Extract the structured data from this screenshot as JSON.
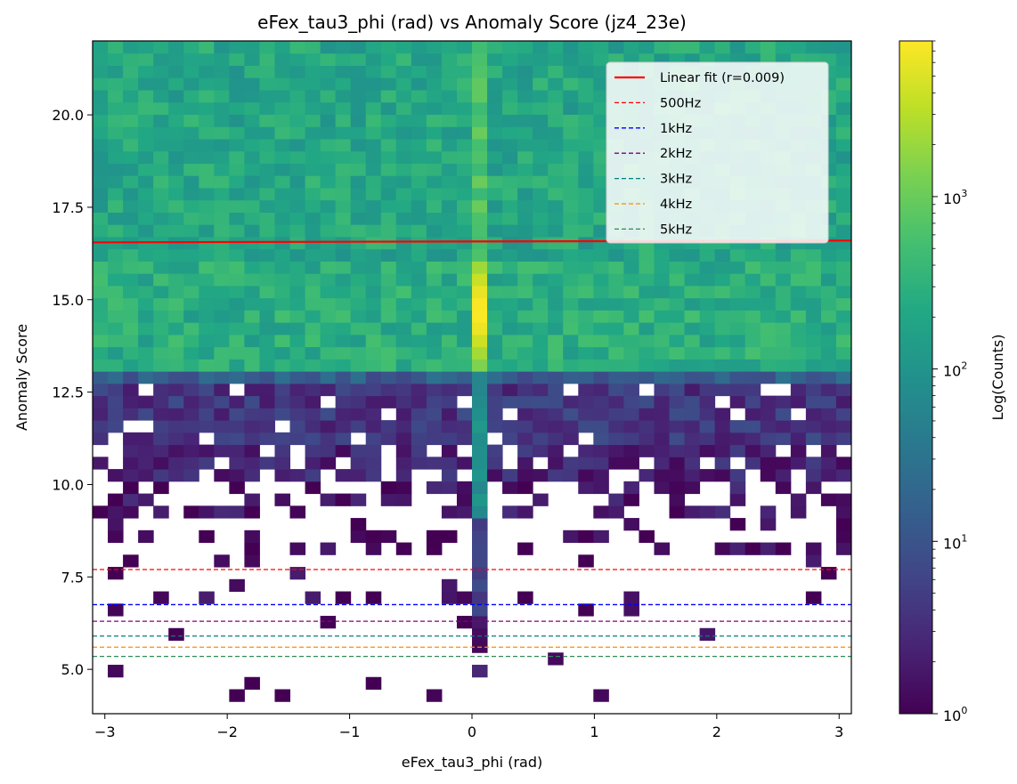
{
  "chart_data": {
    "type": "heatmap",
    "title": "eFex_tau3_phi (rad) vs Anomaly Score (jz4_23e)",
    "xlabel": "eFex_tau3_phi (rad)",
    "ylabel": "Anomaly Score",
    "xlim": [
      -3.1,
      3.1
    ],
    "ylim": [
      3.8,
      22.0
    ],
    "x_ticks": [
      -3,
      -2,
      -1,
      0,
      1,
      2,
      3
    ],
    "x_tick_labels": [
      "−3",
      "−2",
      "−1",
      "0",
      "1",
      "2",
      "3"
    ],
    "y_ticks": [
      5.0,
      7.5,
      10.0,
      12.5,
      15.0,
      17.5,
      20.0
    ],
    "y_tick_labels": [
      "5.0",
      "7.5",
      "10.0",
      "12.5",
      "15.0",
      "17.5",
      "20.0"
    ],
    "bins": {
      "nx": 50,
      "ny": 55
    },
    "colorbar": {
      "label": "Log(Counts)",
      "scale": "log",
      "range": [
        1,
        8000
      ],
      "tick_labels": [
        {
          "base": "10",
          "exp": "0",
          "value": 1
        },
        {
          "base": "10",
          "exp": "1",
          "value": 10
        },
        {
          "base": "10",
          "exp": "2",
          "value": 100
        },
        {
          "base": "10",
          "exp": "3",
          "value": 1000
        }
      ],
      "colormap": "viridis"
    },
    "fit_line": {
      "label": "Linear fit (r=0.009)",
      "color": "#ff0000",
      "x": [
        -3.1,
        3.1
      ],
      "y": [
        16.55,
        16.6
      ]
    },
    "thresholds": [
      {
        "label": "500Hz",
        "y": 7.7,
        "color": "#ff0000"
      },
      {
        "label": "1kHz",
        "y": 6.75,
        "color": "#0000ff"
      },
      {
        "label": "2kHz",
        "y": 6.3,
        "color": "#800080"
      },
      {
        "label": "3kHz",
        "y": 5.9,
        "color": "#008080"
      },
      {
        "label": "4kHz",
        "y": 5.6,
        "color": "#ff8c00"
      },
      {
        "label": "5kHz",
        "y": 5.35,
        "color": "#2e8b57"
      }
    ],
    "legend_position": "upper-right",
    "grid": false,
    "central_peak": {
      "x": 0.07,
      "y_max_count_at": 14.7,
      "max_count": 8000
    }
  }
}
